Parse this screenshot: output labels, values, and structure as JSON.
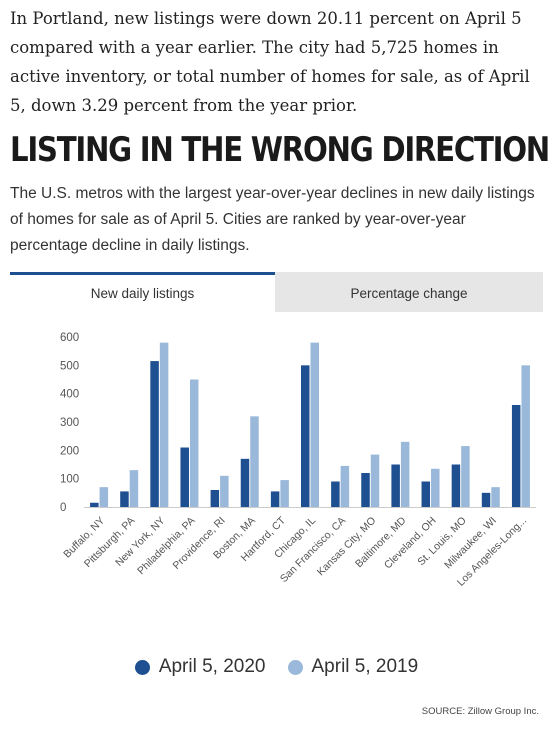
{
  "article": {
    "intro": "In Portland, new listings were down 20.11 percent on April 5 compared with a year earlier. The city had 5,725 homes in active inventory, or total number of homes for sale, as of April 5, down 3.29 percent from the year prior.",
    "headline": "LISTING IN THE WRONG  DIRECTION",
    "subhead": "The U.S. metros with the largest year-over-year declines in new daily listings of homes for sale as of April 5. Cities are ranked by year-over-year percentage decline in daily listings."
  },
  "tabs": [
    {
      "label": "New daily listings",
      "active": true
    },
    {
      "label": "Percentage change",
      "active": false
    }
  ],
  "colors": {
    "series_2020": "#1d4f91",
    "series_2019": "#9ab8d9",
    "axis": "#cccccc",
    "text": "#555555"
  },
  "chart_data": {
    "type": "bar",
    "title": "",
    "xlabel": "",
    "ylabel": "",
    "ylim": [
      0,
      600
    ],
    "yticks": [
      0,
      100,
      200,
      300,
      400,
      500,
      600
    ],
    "grid": false,
    "legend_position": "bottom",
    "categories": [
      "Buffalo, NY",
      "Pittsburgh, PA",
      "New York, NY",
      "Philadelphia, PA",
      "Providence, RI",
      "Boston, MA",
      "Hartford, CT",
      "Chicago, IL",
      "San Francisco, CA",
      "Kansas City, MO",
      "Baltimore, MD",
      "Cleveland, OH",
      "St. Louis, MO",
      "Milwaukee, WI",
      "Los Angeles-Long..."
    ],
    "series": [
      {
        "name": "April 5, 2020",
        "values": [
          15,
          55,
          515,
          210,
          60,
          170,
          55,
          500,
          90,
          120,
          150,
          90,
          150,
          50,
          360
        ]
      },
      {
        "name": "April 5, 2019",
        "values": [
          70,
          130,
          580,
          450,
          110,
          320,
          95,
          580,
          145,
          185,
          230,
          135,
          215,
          70,
          500
        ]
      }
    ]
  },
  "source": "SOURCE: Zillow Group Inc."
}
